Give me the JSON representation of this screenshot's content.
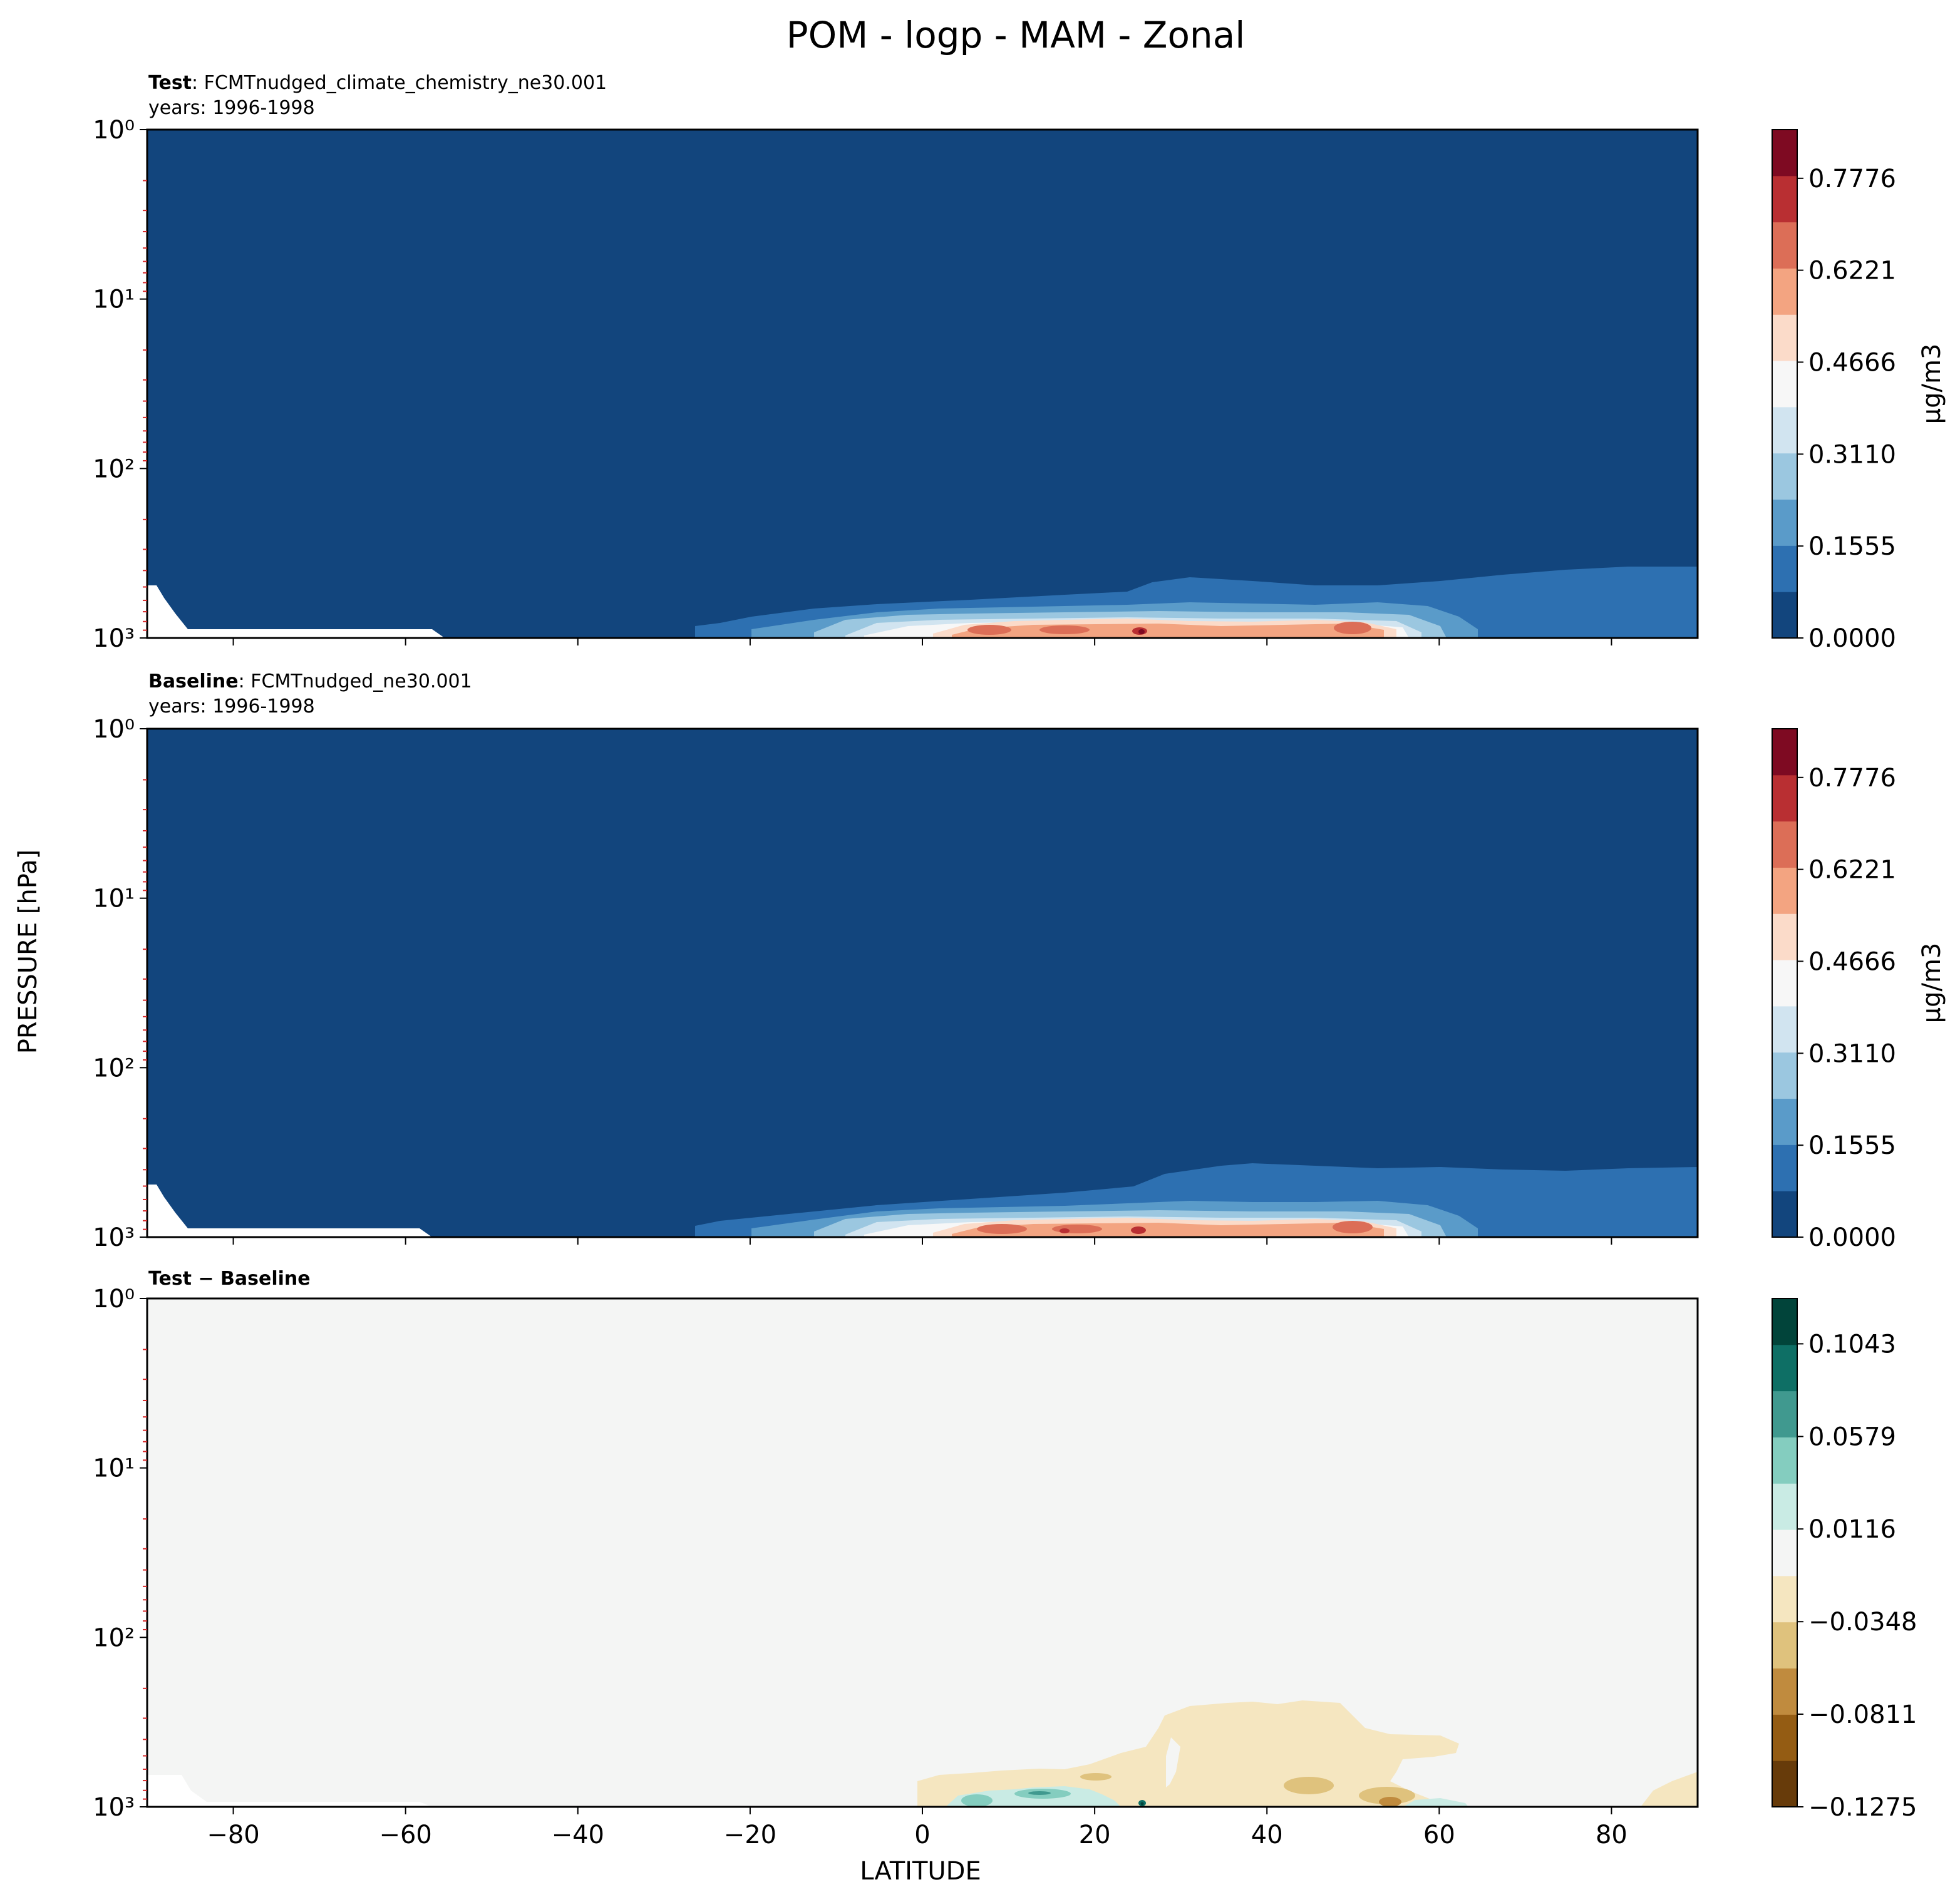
{
  "figure": {
    "title": "POM - logp - MAM - Zonal",
    "xlabel": "LATITUDE",
    "ylabel": "PRESSURE [hPa]"
  },
  "chart_data": [
    {
      "type": "heatmap",
      "panel": "test",
      "title_bold": "Test",
      "title_rest": ": FCMTnudged_climate_chemistry_ne30.001",
      "subtitle": "years: 1996-1998",
      "x_range": [
        -90,
        90
      ],
      "y_range": [
        1000,
        1
      ],
      "y_scale": "log",
      "y_ticks": [
        "10⁰",
        "10¹",
        "10²",
        "10³"
      ],
      "x_ticks": [
        -80,
        -60,
        -40,
        -20,
        0,
        20,
        40,
        60,
        80
      ],
      "colorbar_label": "μg/m3",
      "colorbar_ticks": [
        "0.0000",
        "0.1555",
        "0.3110",
        "0.4666",
        "0.6221",
        "0.7776"
      ],
      "colorbar_range": [
        0,
        0.86
      ],
      "colorbar_colors": [
        "#12457d",
        "#2d70b1",
        "#5a9bc9",
        "#9bc7e0",
        "#d1e4f0",
        "#f7f7f7",
        "#fbdbc9",
        "#f3a481",
        "#dc6e57",
        "#b92f32",
        "#7e0a22"
      ],
      "notable_regions": [
        {
          "lat": [
            -30,
            65
          ],
          "pressure_hPa": [
            1000,
            600
          ],
          "value_range": [
            0.1555,
            0.311
          ]
        },
        {
          "lat": [
            -5,
            55
          ],
          "pressure_hPa": [
            1000,
            850
          ],
          "value_range": [
            0.4666,
            0.8
          ]
        },
        {
          "lat": [
            25,
            26
          ],
          "pressure_hPa": [
            1000,
            960
          ],
          "value_range": [
            0.7776,
            0.86
          ]
        }
      ]
    },
    {
      "type": "heatmap",
      "panel": "baseline",
      "title_bold": "Baseline",
      "title_rest": ": FCMTnudged_ne30.001",
      "subtitle": "years: 1996-1998",
      "x_range": [
        -90,
        90
      ],
      "y_range": [
        1000,
        1
      ],
      "y_scale": "log",
      "y_ticks": [
        "10⁰",
        "10¹",
        "10²",
        "10³"
      ],
      "x_ticks": [
        -80,
        -60,
        -40,
        -20,
        0,
        20,
        40,
        60,
        80
      ],
      "colorbar_label": "μg/m3",
      "colorbar_ticks": [
        "0.0000",
        "0.1555",
        "0.3110",
        "0.4666",
        "0.6221",
        "0.7776"
      ],
      "colorbar_range": [
        0,
        0.86
      ],
      "colorbar_colors": [
        "#12457d",
        "#2d70b1",
        "#5a9bc9",
        "#9bc7e0",
        "#d1e4f0",
        "#f7f7f7",
        "#fbdbc9",
        "#f3a481",
        "#dc6e57",
        "#b92f32",
        "#7e0a22"
      ],
      "notable_regions": [
        {
          "lat": [
            -30,
            65
          ],
          "pressure_hPa": [
            1000,
            600
          ],
          "value_range": [
            0.1555,
            0.311
          ]
        },
        {
          "lat": [
            -5,
            55
          ],
          "pressure_hPa": [
            1000,
            850
          ],
          "value_range": [
            0.4666,
            0.8
          ]
        },
        {
          "lat": [
            25,
            26
          ],
          "pressure_hPa": [
            1000,
            960
          ],
          "value_range": [
            0.7776,
            0.86
          ]
        }
      ]
    },
    {
      "type": "heatmap",
      "panel": "difference",
      "title_bold": "Test − Baseline",
      "title_rest": "",
      "subtitle": "",
      "x_range": [
        -90,
        90
      ],
      "y_range": [
        1000,
        1
      ],
      "y_scale": "log",
      "y_ticks": [
        "10⁰",
        "10¹",
        "10²",
        "10³"
      ],
      "x_ticks": [
        -80,
        -60,
        -40,
        -20,
        0,
        20,
        40,
        60,
        80
      ],
      "colorbar_label": "",
      "colorbar_ticks": [
        "−0.1275",
        "−0.0811",
        "−0.0348",
        "0.0116",
        "0.0579",
        "0.1043"
      ],
      "colorbar_range": [
        -0.1275,
        0.127
      ],
      "colorbar_colors": [
        "#673b0a",
        "#945c13",
        "#c08b3e",
        "#dfc27d",
        "#f5e6c0",
        "#f4f5f4",
        "#c9ebe4",
        "#84cdbf",
        "#40998f",
        "#0e6f65",
        "#01443a"
      ],
      "notable_regions": [
        {
          "lat": [
            25,
            65
          ],
          "pressure_hPa": [
            1000,
            250
          ],
          "value_range": [
            -0.0348,
            0.0116
          ]
        },
        {
          "lat": [
            40,
            58
          ],
          "pressure_hPa": [
            1000,
            800
          ],
          "value_range": [
            -0.0811,
            -0.0348
          ]
        },
        {
          "lat": [
            3,
            20
          ],
          "pressure_hPa": [
            1000,
            900
          ],
          "value_range": [
            0.0116,
            0.0579
          ]
        }
      ]
    }
  ]
}
